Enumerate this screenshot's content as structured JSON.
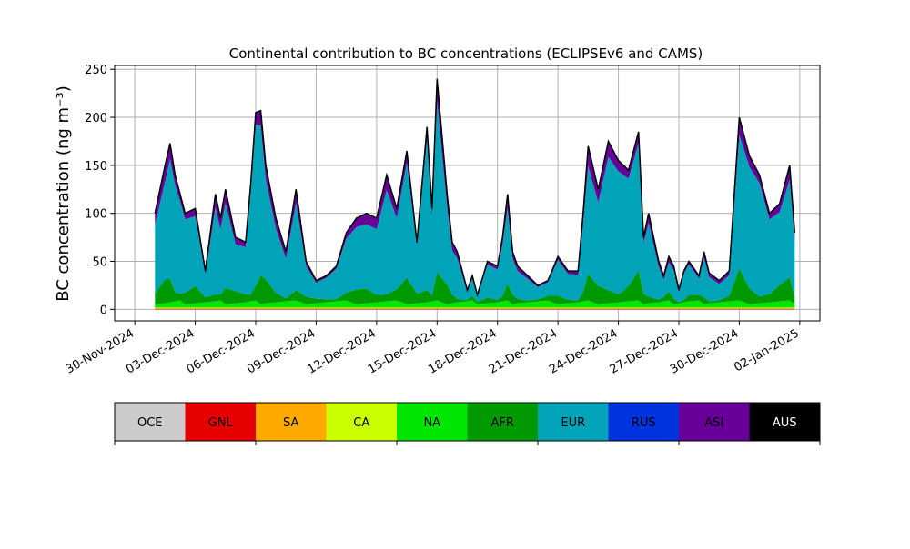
{
  "chart_data": {
    "type": "area",
    "title": "Continental contribution to BC concentrations (ECLIPSEv6 and CAMS)",
    "ylabel": "BC concentration (ng m⁻³)",
    "xlabel": "",
    "x_range": [
      "2024-11-29",
      "2025-01-03"
    ],
    "ylim": [
      -12,
      254
    ],
    "yticks": [
      0,
      50,
      100,
      150,
      200,
      250
    ],
    "xticks": [
      "2024-11-30",
      "2024-12-03",
      "2024-12-06",
      "2024-12-09",
      "2024-12-12",
      "2024-12-15",
      "2024-12-18",
      "2024-12-21",
      "2024-12-24",
      "2024-12-27",
      "2024-12-30",
      "2025-01-02"
    ],
    "xtick_labels": [
      "30-Nov-2024",
      "03-Dec-2024",
      "06-Dec-2024",
      "09-Dec-2024",
      "12-Dec-2024",
      "15-Dec-2024",
      "18-Dec-2024",
      "21-Dec-2024",
      "24-Dec-2024",
      "27-Dec-2024",
      "30-Dec-2024",
      "02-Jan-2025"
    ],
    "grid": true,
    "legend_position": "bottom",
    "total_series": {
      "x": [
        "2024-12-01",
        "2024-12-01 12:00",
        "2024-12-01 18:00",
        "2024-12-02",
        "2024-12-02 06:00",
        "2024-12-02 12:00",
        "2024-12-03",
        "2024-12-03 12:00",
        "2024-12-04",
        "2024-12-04 06:00",
        "2024-12-04 12:00",
        "2024-12-05",
        "2024-12-05 12:00",
        "2024-12-05 18:00",
        "2024-12-06",
        "2024-12-06 06:00",
        "2024-12-06 12:00",
        "2024-12-07",
        "2024-12-07 12:00",
        "2024-12-08",
        "2024-12-08 12:00",
        "2024-12-09",
        "2024-12-09 12:00",
        "2024-12-10",
        "2024-12-10 12:00",
        "2024-12-11",
        "2024-12-11 12:00",
        "2024-12-12",
        "2024-12-12 12:00",
        "2024-12-13",
        "2024-12-13 12:00",
        "2024-12-14",
        "2024-12-14 12:00",
        "2024-12-14 18:00",
        "2024-12-15",
        "2024-12-15 12:00",
        "2024-12-15 18:00",
        "2024-12-16",
        "2024-12-16 12:00",
        "2024-12-16 18:00",
        "2024-12-17",
        "2024-12-17 12:00",
        "2024-12-18",
        "2024-12-18 06:00",
        "2024-12-18 12:00",
        "2024-12-18 18:00",
        "2024-12-19",
        "2024-12-19 12:00",
        "2024-12-20",
        "2024-12-20 12:00",
        "2024-12-21",
        "2024-12-21 12:00",
        "2024-12-22",
        "2024-12-22 06:00",
        "2024-12-22 12:00",
        "2024-12-23",
        "2024-12-23 12:00",
        "2024-12-24",
        "2024-12-24 12:00",
        "2024-12-25",
        "2024-12-25 06:00",
        "2024-12-25 12:00",
        "2024-12-26",
        "2024-12-26 06:00",
        "2024-12-26 12:00",
        "2024-12-26 18:00",
        "2024-12-27",
        "2024-12-27 06:00",
        "2024-12-27 12:00",
        "2024-12-28",
        "2024-12-28 06:00",
        "2024-12-28 12:00",
        "2024-12-29",
        "2024-12-29 12:00",
        "2024-12-30",
        "2024-12-30 12:00",
        "2024-12-31",
        "2024-12-31 12:00",
        "2025-01-01",
        "2025-01-01 12:00",
        "2025-01-01 18:00"
      ],
      "y": [
        100,
        150,
        173,
        140,
        120,
        100,
        105,
        40,
        120,
        95,
        125,
        75,
        70,
        130,
        205,
        207,
        150,
        95,
        60,
        125,
        50,
        30,
        35,
        45,
        80,
        95,
        100,
        95,
        140,
        105,
        165,
        70,
        190,
        105,
        240,
        120,
        70,
        60,
        20,
        35,
        15,
        50,
        45,
        75,
        120,
        60,
        45,
        35,
        25,
        30,
        55,
        40,
        40,
        100,
        170,
        125,
        175,
        155,
        145,
        185,
        75,
        100,
        50,
        35,
        55,
        45,
        20,
        40,
        50,
        35,
        60,
        38,
        30,
        40,
        200,
        160,
        140,
        100,
        110,
        150,
        80
      ]
    },
    "series": [
      {
        "name": "OCE",
        "color": "#cccccc",
        "values": []
      },
      {
        "name": "GNL",
        "color": "#e60000",
        "values": []
      },
      {
        "name": "SA",
        "color": "#ffaa00",
        "values": []
      },
      {
        "name": "CA",
        "color": "#ccff00",
        "values": []
      },
      {
        "name": "NA",
        "color": "#00e600",
        "values": []
      },
      {
        "name": "AFR",
        "color": "#009900",
        "values": []
      },
      {
        "name": "EUR",
        "color": "#00a3b8",
        "values": []
      },
      {
        "name": "RUS",
        "color": "#0033dd",
        "values": []
      },
      {
        "name": "ASI",
        "color": "#660099",
        "values": []
      },
      {
        "name": "AUS",
        "color": "#000000",
        "values": []
      }
    ]
  }
}
